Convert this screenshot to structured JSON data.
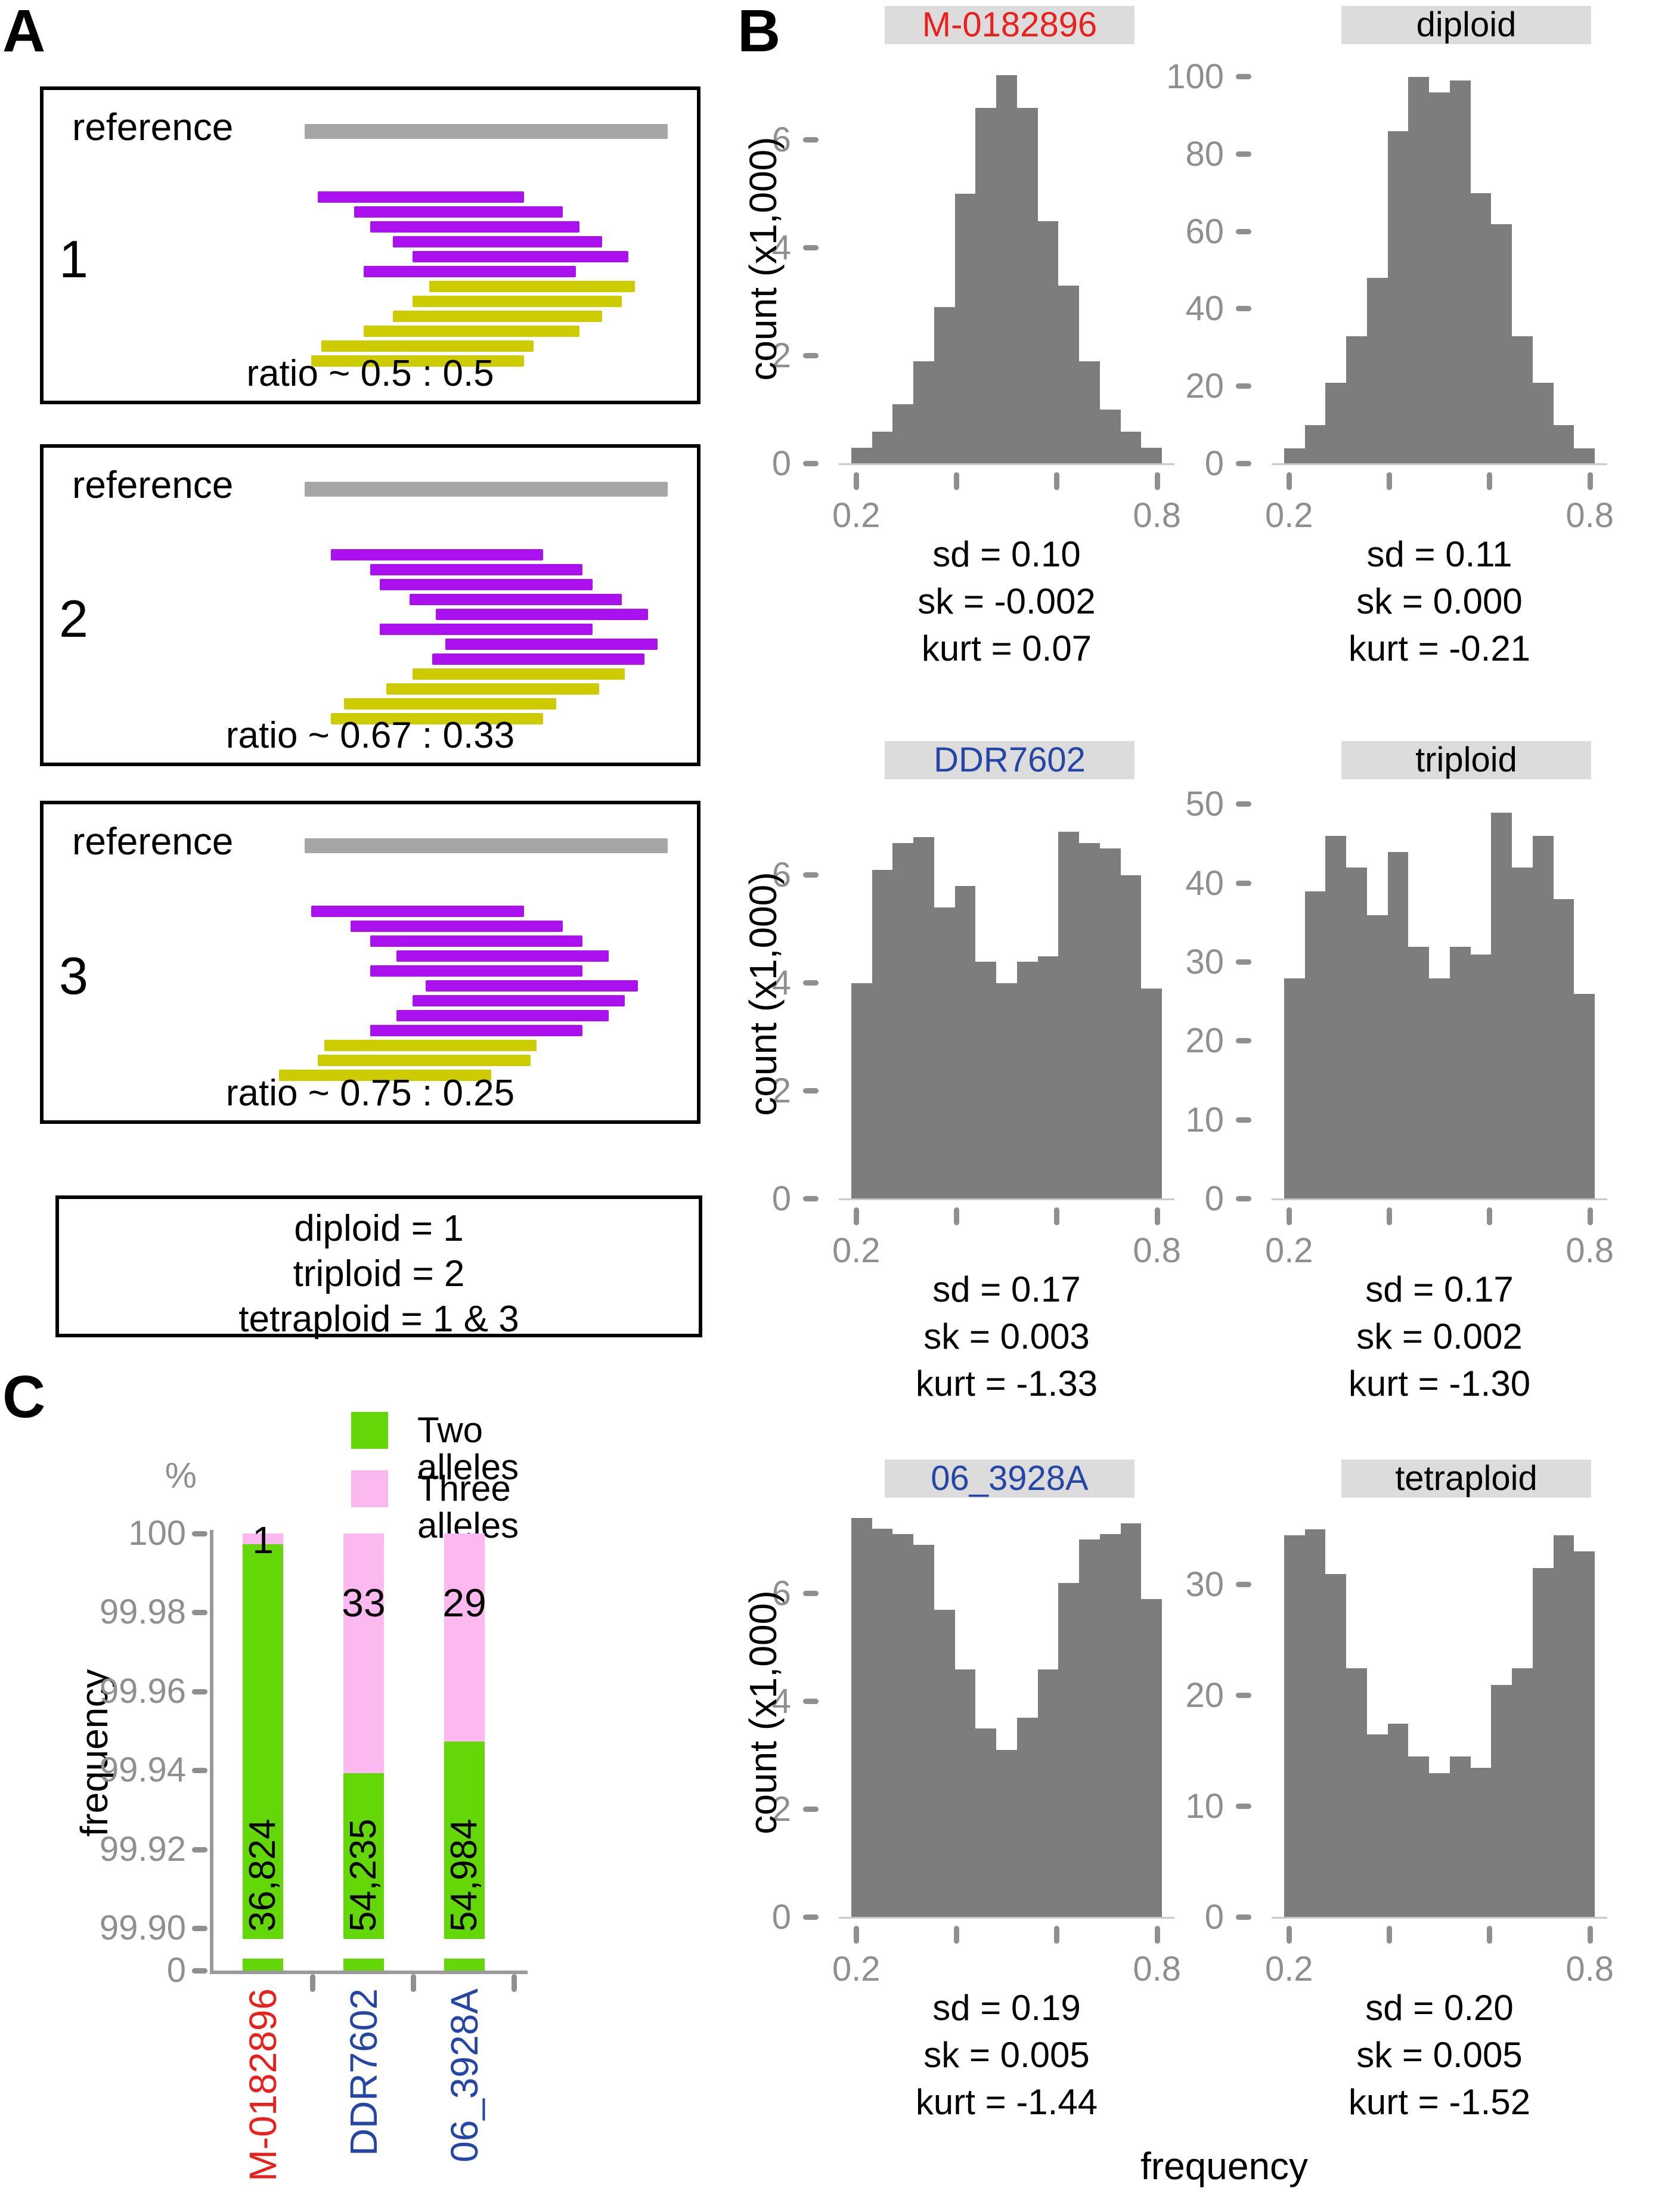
{
  "colors": {
    "purple": "#ab11ee",
    "yellow": "#cccc00",
    "reference_gray": "#a6a6a6",
    "hist_gray": "#7d7d7d",
    "band_gray": "#dcdcdc",
    "green": "#64d708",
    "pink": "#fbb9f0",
    "red": "#e8211d",
    "blue": "#2646a5",
    "axis_gray": "#9a9a9a",
    "tick_label_gray": "#8f8f8f",
    "black": "#000000"
  },
  "panelA": {
    "label": "A",
    "boxes": [
      {
        "number": "1",
        "reference_label": "reference",
        "ratio_label": "ratio ~ 0.5 : 0.5",
        "reference_span": [
          0.4,
          0.955
        ],
        "reads": [
          {
            "color": "purple",
            "span": [
              0.42,
              0.735
            ]
          },
          {
            "color": "purple",
            "span": [
              0.475,
              0.795
            ]
          },
          {
            "color": "purple",
            "span": [
              0.5,
              0.82
            ]
          },
          {
            "color": "purple",
            "span": [
              0.535,
              0.855
            ]
          },
          {
            "color": "purple",
            "span": [
              0.565,
              0.895
            ]
          },
          {
            "color": "purple",
            "span": [
              0.49,
              0.815
            ]
          },
          {
            "color": "yellow",
            "span": [
              0.59,
              0.905
            ]
          },
          {
            "color": "yellow",
            "span": [
              0.565,
              0.885
            ]
          },
          {
            "color": "yellow",
            "span": [
              0.535,
              0.855
            ]
          },
          {
            "color": "yellow",
            "span": [
              0.49,
              0.82
            ]
          },
          {
            "color": "yellow",
            "span": [
              0.425,
              0.75
            ]
          },
          {
            "color": "yellow",
            "span": [
              0.41,
              0.735
            ]
          }
        ]
      },
      {
        "number": "2",
        "reference_label": "reference",
        "ratio_label": "ratio ~ 0.67 : 0.33",
        "reference_span": [
          0.4,
          0.955
        ],
        "reads": [
          {
            "color": "purple",
            "span": [
              0.44,
              0.765
            ]
          },
          {
            "color": "purple",
            "span": [
              0.5,
              0.825
            ]
          },
          {
            "color": "purple",
            "span": [
              0.515,
              0.84
            ]
          },
          {
            "color": "purple",
            "span": [
              0.56,
              0.885
            ]
          },
          {
            "color": "purple",
            "span": [
              0.6,
              0.925
            ]
          },
          {
            "color": "purple",
            "span": [
              0.515,
              0.84
            ]
          },
          {
            "color": "purple",
            "span": [
              0.615,
              0.94
            ]
          },
          {
            "color": "purple",
            "span": [
              0.595,
              0.92
            ]
          },
          {
            "color": "yellow",
            "span": [
              0.565,
              0.89
            ]
          },
          {
            "color": "yellow",
            "span": [
              0.525,
              0.85
            ]
          },
          {
            "color": "yellow",
            "span": [
              0.46,
              0.785
            ]
          },
          {
            "color": "yellow",
            "span": [
              0.44,
              0.765
            ]
          }
        ]
      },
      {
        "number": "3",
        "reference_label": "reference",
        "ratio_label": "ratio ~ 0.75 : 0.25",
        "reference_span": [
          0.4,
          0.955
        ],
        "reads": [
          {
            "color": "purple",
            "span": [
              0.41,
              0.735
            ]
          },
          {
            "color": "purple",
            "span": [
              0.47,
              0.795
            ]
          },
          {
            "color": "purple",
            "span": [
              0.5,
              0.825
            ]
          },
          {
            "color": "purple",
            "span": [
              0.54,
              0.865
            ]
          },
          {
            "color": "purple",
            "span": [
              0.5,
              0.825
            ]
          },
          {
            "color": "purple",
            "span": [
              0.585,
              0.91
            ]
          },
          {
            "color": "purple",
            "span": [
              0.565,
              0.89
            ]
          },
          {
            "color": "purple",
            "span": [
              0.54,
              0.865
            ]
          },
          {
            "color": "purple",
            "span": [
              0.5,
              0.825
            ]
          },
          {
            "color": "yellow",
            "span": [
              0.43,
              0.755
            ]
          },
          {
            "color": "yellow",
            "span": [
              0.42,
              0.745
            ]
          },
          {
            "color": "yellow",
            "span": [
              0.36,
              0.685
            ]
          }
        ]
      }
    ],
    "note_lines": [
      "diploid = 1",
      "triploid = 2",
      "tetraploid = 1 & 3"
    ]
  },
  "panelB": {
    "label": "B",
    "ylabel": "count (x1,000)",
    "xlabel": "frequency"
  },
  "panelC": {
    "label": "C",
    "percent_label": "%",
    "ylabel": "frequency",
    "legend": [
      {
        "label": "Two alleles",
        "color": "green"
      },
      {
        "label": "Three alleles",
        "color": "pink"
      }
    ]
  },
  "chart_data": [
    {
      "id": "hist-m0182896",
      "type": "bar",
      "subtype": "histogram",
      "row": 0,
      "col": 0,
      "title": "M-0182896",
      "title_color": "red",
      "ylabel": "count (x1,000)",
      "xlabel": "frequency",
      "x_range": [
        0.19,
        0.81
      ],
      "x_bin_width": 0.0413,
      "xticks": [
        0.2,
        0.4,
        0.6,
        0.8
      ],
      "xtick_first_label": "0.2",
      "xtick_last_label": "0.8",
      "yticks": [
        0,
        2,
        4,
        6
      ],
      "ymax": 7.6,
      "values": [
        0.3,
        0.6,
        1.1,
        1.9,
        2.9,
        5.0,
        6.6,
        7.2,
        6.6,
        4.5,
        3.3,
        1.9,
        1.0,
        0.6,
        0.3
      ],
      "stats_lines": [
        "sd = 0.10",
        "sk = -0.002",
        "kurt = 0.07"
      ]
    },
    {
      "id": "hist-diploid",
      "type": "bar",
      "subtype": "histogram",
      "row": 0,
      "col": 1,
      "title": "diploid",
      "title_color": "black",
      "x_range": [
        0.19,
        0.81
      ],
      "x_bin_width": 0.0413,
      "xticks": [
        0.2,
        0.4,
        0.6,
        0.8
      ],
      "xtick_first_label": "0.2",
      "xtick_last_label": "0.8",
      "yticks": [
        0,
        20,
        40,
        60,
        80,
        100
      ],
      "ymax": 106,
      "values": [
        4,
        10,
        21,
        33,
        48,
        86,
        100,
        96,
        99,
        70,
        62,
        33,
        21,
        10,
        4
      ],
      "stats_lines": [
        "sd = 0.11",
        "sk = 0.000",
        "kurt = -0.21"
      ]
    },
    {
      "id": "hist-ddr7602",
      "type": "bar",
      "subtype": "histogram",
      "row": 1,
      "col": 0,
      "title": "DDR7602",
      "title_color": "blue",
      "ylabel": "count (x1,000)",
      "x_range": [
        0.19,
        0.81
      ],
      "x_bin_width": 0.0413,
      "xticks": [
        0.2,
        0.4,
        0.6,
        0.8
      ],
      "xtick_first_label": "0.2",
      "xtick_last_label": "0.8",
      "yticks": [
        0,
        2,
        4,
        6
      ],
      "ymax": 7.6,
      "values": [
        4.0,
        6.1,
        6.6,
        6.7,
        5.4,
        5.8,
        4.4,
        4.0,
        4.4,
        4.5,
        6.8,
        6.6,
        6.5,
        6.0,
        3.9
      ],
      "stats_lines": [
        "sd = 0.17",
        "sk = 0.003",
        "kurt = -1.33"
      ]
    },
    {
      "id": "hist-triploid",
      "type": "bar",
      "subtype": "histogram",
      "row": 1,
      "col": 1,
      "title": "triploid",
      "title_color": "black",
      "x_range": [
        0.19,
        0.81
      ],
      "x_bin_width": 0.0413,
      "xticks": [
        0.2,
        0.4,
        0.6,
        0.8
      ],
      "xtick_first_label": "0.2",
      "xtick_last_label": "0.8",
      "yticks": [
        0,
        10,
        20,
        30,
        40,
        50
      ],
      "ymax": 52,
      "values": [
        28,
        39,
        46,
        42,
        36,
        44,
        32,
        28,
        32,
        31,
        49,
        42,
        46,
        38,
        26
      ],
      "stats_lines": [
        "sd = 0.17",
        "sk = 0.002",
        "kurt = -1.30"
      ]
    },
    {
      "id": "hist-06-3928a",
      "type": "bar",
      "subtype": "histogram",
      "row": 2,
      "col": 0,
      "title": "06_3928A",
      "title_color": "blue",
      "ylabel": "count (x1,000)",
      "x_range": [
        0.19,
        0.81
      ],
      "x_bin_width": 0.0413,
      "xticks": [
        0.2,
        0.4,
        0.6,
        0.8
      ],
      "xtick_first_label": "0.2",
      "xtick_last_label": "0.8",
      "yticks": [
        0,
        2,
        4,
        6
      ],
      "ymax": 7.6,
      "values": [
        7.4,
        7.2,
        7.1,
        6.9,
        5.7,
        4.6,
        3.5,
        3.1,
        3.7,
        4.6,
        6.2,
        7.0,
        7.1,
        7.3,
        5.9
      ],
      "stats_lines": [
        "sd = 0.19",
        "sk = 0.005",
        "kurt = -1.44"
      ]
    },
    {
      "id": "hist-tetraploid",
      "type": "bar",
      "subtype": "histogram",
      "row": 2,
      "col": 1,
      "title": "tetraploid",
      "title_color": "black",
      "x_range": [
        0.19,
        0.81
      ],
      "x_bin_width": 0.0413,
      "xticks": [
        0.2,
        0.4,
        0.6,
        0.8
      ],
      "xtick_first_label": "0.2",
      "xtick_last_label": "0.8",
      "yticks": [
        0,
        10,
        20,
        30
      ],
      "ymax": 37,
      "values": [
        34.5,
        35,
        31,
        22.5,
        16.5,
        17.5,
        14.5,
        13,
        14.5,
        13.5,
        21,
        22.5,
        31.5,
        34.5,
        33
      ],
      "stats_lines": [
        "sd = 0.20",
        "sk = 0.005",
        "kurt = -1.52"
      ]
    },
    {
      "id": "allele-counts",
      "type": "stacked_bar",
      "ylabel": "frequency",
      "y_unit": "%",
      "categories": [
        "M-0182896",
        "DDR7602",
        "06_3928A"
      ],
      "category_colors": [
        "red",
        "blue",
        "blue"
      ],
      "series": [
        {
          "name": "Two alleles",
          "color": "green",
          "counts": [
            36824,
            54235,
            54984
          ],
          "bar_labels": [
            "36,824",
            "54,235",
            "54,984"
          ]
        },
        {
          "name": "Three alleles",
          "color": "pink",
          "counts": [
            1,
            33,
            29
          ],
          "bar_labels": [
            "1",
            "33",
            "29"
          ]
        }
      ],
      "two_allele_top_pct": [
        99.9973,
        99.9392,
        99.9473
      ],
      "yticks": [
        "100",
        "99.98",
        "99.96",
        "99.94",
        "99.92",
        "99.90"
      ],
      "ytick_values": [
        100,
        99.98,
        99.96,
        99.94,
        99.92,
        99.9
      ],
      "y_break_label": "0",
      "axis_broken": true,
      "ylim": [
        99.9,
        100
      ]
    }
  ]
}
